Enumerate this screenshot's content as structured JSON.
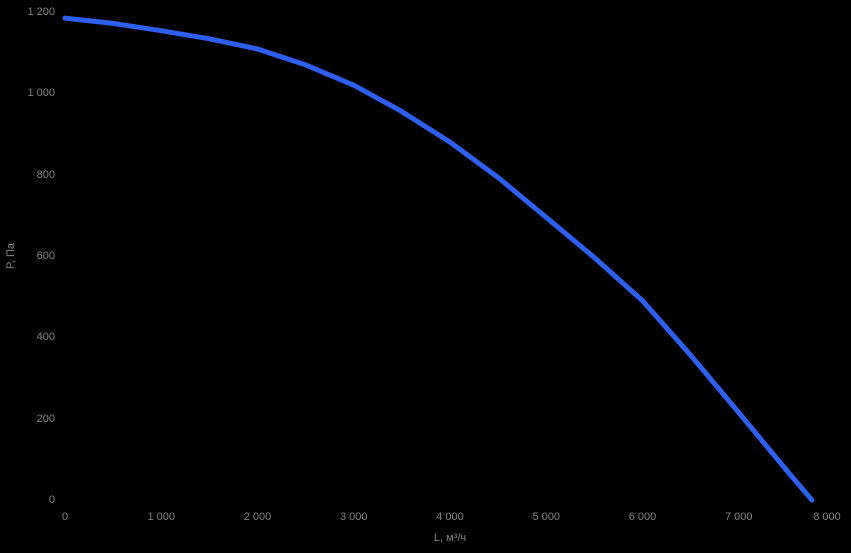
{
  "chart_data": {
    "type": "line",
    "title": "",
    "xlabel": "L, м³/ч",
    "ylabel": "P, Па",
    "xlim": [
      0,
      8000
    ],
    "ylim": [
      0,
      1200
    ],
    "grid": false,
    "legend": "none",
    "background_color": "#000000",
    "tick_label_color": "#828282",
    "x_ticks": [
      {
        "value": 0,
        "label": "0"
      },
      {
        "value": 1000,
        "label": "1 000"
      },
      {
        "value": 2000,
        "label": "2 000"
      },
      {
        "value": 3000,
        "label": "3 000"
      },
      {
        "value": 4000,
        "label": "4 000"
      },
      {
        "value": 5000,
        "label": "5 000"
      },
      {
        "value": 6000,
        "label": "6 000"
      },
      {
        "value": 7000,
        "label": "7 000"
      },
      {
        "value": 8000,
        "label": "8 000"
      }
    ],
    "y_ticks": [
      {
        "value": 0,
        "label": "0"
      },
      {
        "value": 200,
        "label": "200"
      },
      {
        "value": 400,
        "label": "400"
      },
      {
        "value": 600,
        "label": "600"
      },
      {
        "value": 800,
        "label": "800"
      },
      {
        "value": 1000,
        "label": "1 000"
      },
      {
        "value": 1200,
        "label": "1 200"
      }
    ],
    "x": [
      0,
      500,
      1000,
      1500,
      2000,
      2500,
      3000,
      3500,
      4000,
      4500,
      5000,
      5500,
      6000,
      6500,
      7000,
      7500,
      7760
    ],
    "series": [
      {
        "color": "#2d5ff0",
        "values": [
          1185,
          1172,
          1154,
          1134,
          1109,
          1070,
          1020,
          955,
          880,
          793,
          695,
          596,
          490,
          356,
          215,
          72,
          0
        ]
      }
    ]
  }
}
